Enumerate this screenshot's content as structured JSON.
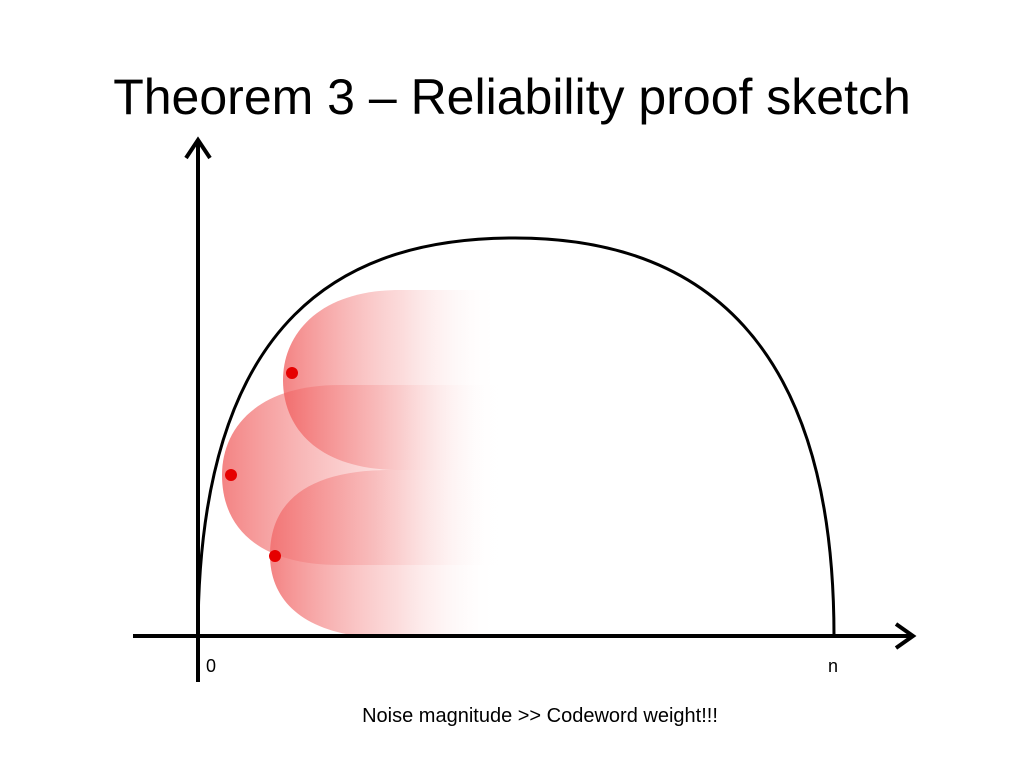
{
  "slide": {
    "title": "Theorem 3 – Reliability proof sketch",
    "caption": "Noise magnitude >> Codeword weight!!!"
  },
  "axes": {
    "origin_label": "0",
    "end_label": "n"
  },
  "colors": {
    "ink": "#000000",
    "codeword_dot": "#e60000",
    "noise_cloud": "#f05a5a"
  },
  "codewords": [
    {
      "name": "codeword-upper"
    },
    {
      "name": "codeword-middle"
    },
    {
      "name": "codeword-lower"
    }
  ]
}
